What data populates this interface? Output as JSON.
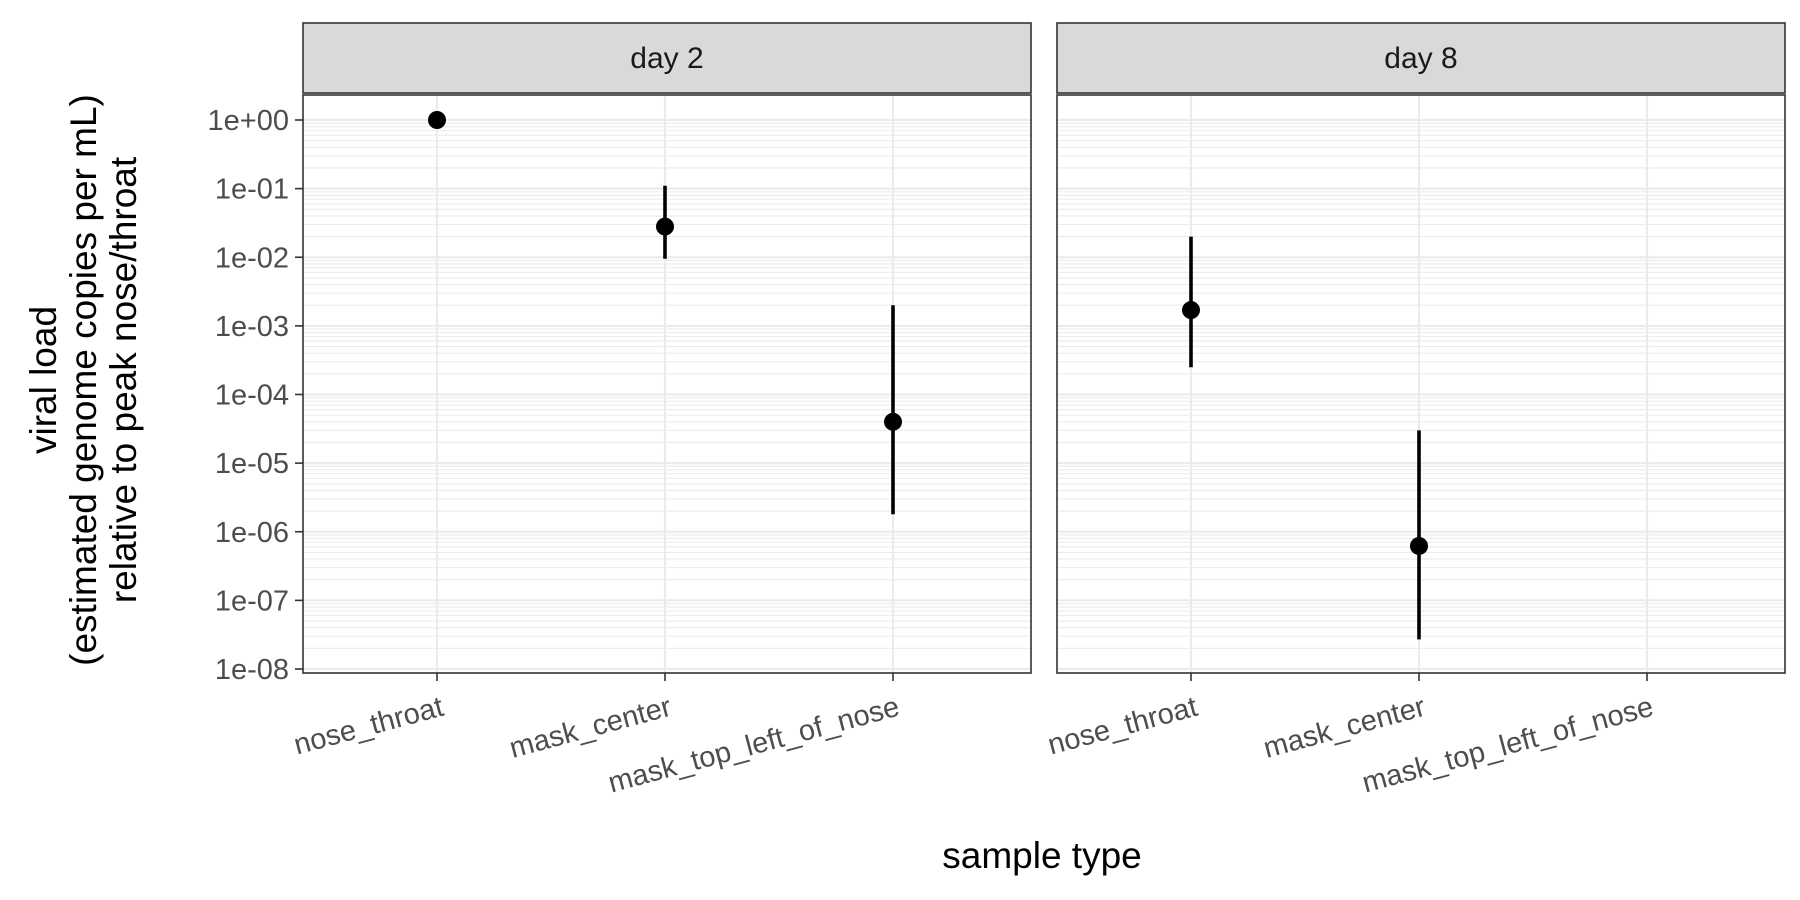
{
  "chart_data": {
    "type": "scatter",
    "subtype": "pointrange, faceted",
    "xlabel": "sample type",
    "ylabel_lines": [
      "viral load",
      "(estimated genome copies per mL)",
      "relative to peak nose/throat"
    ],
    "y_scale": "log10",
    "ylim": [
      1e-08,
      1.5
    ],
    "y_ticks": [
      1,
      0.1,
      0.01,
      0.001,
      0.0001,
      1e-05,
      1e-06,
      1e-07,
      1e-08
    ],
    "y_tick_labels": [
      "1e+00",
      "1e-01",
      "1e-02",
      "1e-03",
      "1e-04",
      "1e-05",
      "1e-06",
      "1e-07",
      "1e-08"
    ],
    "categories": [
      "nose_throat",
      "mask_center",
      "mask_top_left_of_nose"
    ],
    "grid": true,
    "legend": "none",
    "facets": [
      {
        "label": "day 2",
        "points": [
          {
            "category": "nose_throat",
            "y": 1.0,
            "ymin": null,
            "ymax": null
          },
          {
            "category": "mask_center",
            "y": 0.028,
            "ymin": 0.0095,
            "ymax": 0.11
          },
          {
            "category": "mask_top_left_of_nose",
            "y": 4e-05,
            "ymin": 1.8e-06,
            "ymax": 0.002
          }
        ]
      },
      {
        "label": "day 8",
        "points": [
          {
            "category": "nose_throat",
            "y": 0.0017,
            "ymin": 0.00025,
            "ymax": 0.02
          },
          {
            "category": "mask_center",
            "y": 6.2e-07,
            "ymin": 2.7e-08,
            "ymax": 3e-05
          }
        ]
      }
    ]
  }
}
